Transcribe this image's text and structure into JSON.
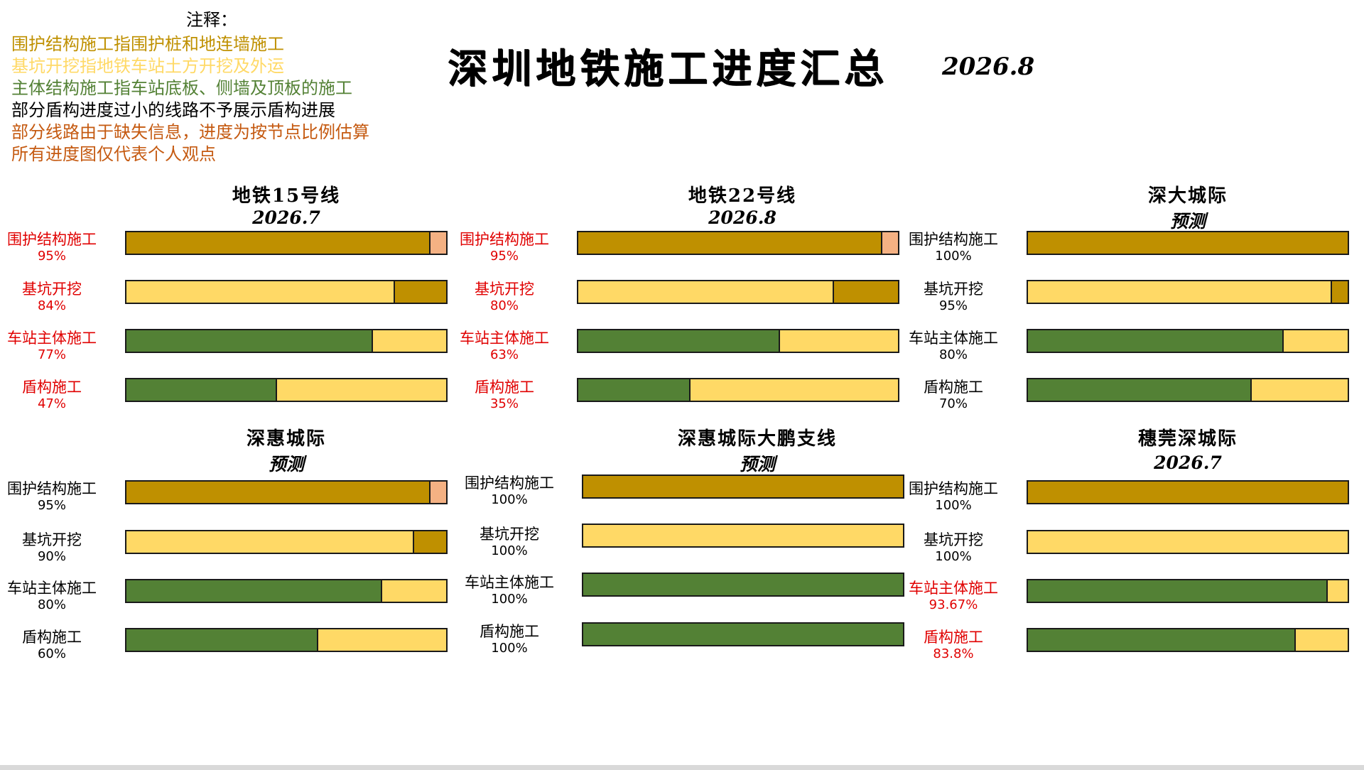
{
  "header": {
    "notes_heading": "注释：",
    "notes": [
      {
        "text": "围护结构施工指围护桩和地连墙施工",
        "color": "#BF9000"
      },
      {
        "text": "基坑开挖指地铁车站土方开挖及外运",
        "color": "#FFD966"
      },
      {
        "text": "主体结构施工指车站底板、侧墙及顶板的施工",
        "color": "#538135"
      },
      {
        "text": "部分盾构进度过小的线路不予展示盾构进展",
        "color": "#000000"
      },
      {
        "text": "部分线路由于缺失信息，进度为按节点比例估算",
        "color": "#C55A11"
      },
      {
        "text": "所有进度图仅代表个人观点",
        "color": "#C55A11"
      }
    ],
    "title": "深圳地铁施工进度汇总",
    "date": "2026.8"
  },
  "colors": {
    "retaining": "#BF9000",
    "excavation": "#FFD966",
    "structure": "#538135",
    "remaining_retaining": "#F4B183",
    "border": "#1A1A1A",
    "red_label": "#E00000",
    "black_label": "#000000"
  },
  "chart_data": [
    {
      "type": "bar",
      "orientation": "horizontal-stacked-progress",
      "title": "地铁15号线",
      "subtitle": "2026.7",
      "categories": [
        "围护结构施工",
        "基坑开挖",
        "车站主体施工",
        "盾构施工"
      ],
      "value_labels": [
        "95%",
        "84%",
        "77%",
        "47%"
      ],
      "values": [
        95,
        84,
        77,
        47
      ],
      "fill_colors": [
        "#BF9000",
        "#FFD966",
        "#538135",
        "#538135"
      ],
      "remainder_colors": [
        "#F4B183",
        "#BF9000",
        "#FFD966",
        "#FFD966"
      ],
      "label_color": "#E00000",
      "xlim": [
        0,
        100
      ]
    },
    {
      "type": "bar",
      "orientation": "horizontal-stacked-progress",
      "title": "地铁22号线",
      "subtitle": "2026.8",
      "categories": [
        "围护结构施工",
        "基坑开挖",
        "车站主体施工",
        "盾构施工"
      ],
      "value_labels": [
        "95%",
        "80%",
        "63%",
        "35%"
      ],
      "values": [
        95,
        80,
        63,
        35
      ],
      "fill_colors": [
        "#BF9000",
        "#FFD966",
        "#538135",
        "#538135"
      ],
      "remainder_colors": [
        "#F4B183",
        "#BF9000",
        "#FFD966",
        "#FFD966"
      ],
      "label_color": "#E00000",
      "xlim": [
        0,
        100
      ]
    },
    {
      "type": "bar",
      "orientation": "horizontal-stacked-progress",
      "title": "深大城际",
      "subtitle": "预测",
      "categories": [
        "围护结构施工",
        "基坑开挖",
        "车站主体施工",
        "盾构施工"
      ],
      "value_labels": [
        "100%",
        "95%",
        "80%",
        "70%"
      ],
      "values": [
        100,
        95,
        80,
        70
      ],
      "fill_colors": [
        "#BF9000",
        "#FFD966",
        "#538135",
        "#538135"
      ],
      "remainder_colors": [
        "#F4B183",
        "#BF9000",
        "#FFD966",
        "#FFD966"
      ],
      "label_color": "#000000",
      "xlim": [
        0,
        100
      ]
    },
    {
      "type": "bar",
      "orientation": "horizontal-stacked-progress",
      "title": "深惠城际",
      "subtitle": "预测",
      "categories": [
        "围护结构施工",
        "基坑开挖",
        "车站主体施工",
        "盾构施工"
      ],
      "value_labels": [
        "95%",
        "90%",
        "80%",
        "60%"
      ],
      "values": [
        95,
        90,
        80,
        60
      ],
      "fill_colors": [
        "#BF9000",
        "#FFD966",
        "#538135",
        "#538135"
      ],
      "remainder_colors": [
        "#F4B183",
        "#BF9000",
        "#FFD966",
        "#FFD966"
      ],
      "label_color": "#000000",
      "xlim": [
        0,
        100
      ]
    },
    {
      "type": "bar",
      "orientation": "horizontal-stacked-progress",
      "title": "深惠城际大鹏支线",
      "subtitle": "预测",
      "categories": [
        "围护结构施工",
        "基坑开挖",
        "车站主体施工",
        "盾构施工"
      ],
      "value_labels": [
        "100%",
        "100%",
        "100%",
        "100%"
      ],
      "values": [
        100,
        100,
        100,
        100
      ],
      "fill_colors": [
        "#BF9000",
        "#FFD966",
        "#538135",
        "#538135"
      ],
      "remainder_colors": [
        "#F4B183",
        "#BF9000",
        "#FFD966",
        "#FFD966"
      ],
      "label_color": "#000000",
      "xlim": [
        0,
        100
      ]
    },
    {
      "type": "bar",
      "orientation": "horizontal-stacked-progress",
      "title": "穗莞深城际",
      "subtitle": "2026.7",
      "categories": [
        "围护结构施工",
        "基坑开挖",
        "车站主体施工",
        "盾构施工"
      ],
      "value_labels": [
        "100%",
        "100%",
        "93.67%",
        "83.8%"
      ],
      "values": [
        100,
        100,
        93.67,
        83.8
      ],
      "fill_colors": [
        "#BF9000",
        "#FFD966",
        "#538135",
        "#538135"
      ],
      "remainder_colors": [
        "#F4B183",
        "#BF9000",
        "#FFD966",
        "#FFD966"
      ],
      "label_colors": [
        "#000000",
        "#000000",
        "#E00000",
        "#E00000"
      ],
      "xlim": [
        0,
        100
      ]
    }
  ]
}
